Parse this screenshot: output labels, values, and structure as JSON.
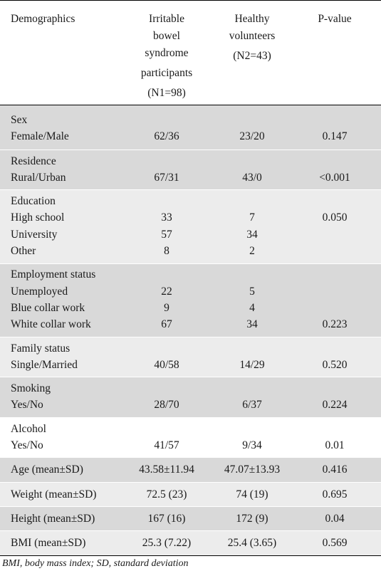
{
  "header": {
    "demographics": "Demographics",
    "ibs_lines": [
      "Irritable",
      "bowel",
      "syndrome",
      "participants",
      "(N1=98)"
    ],
    "hv_lines": [
      "Healthy",
      "volunteers",
      "(N2=43)"
    ],
    "pvalue": "P-value"
  },
  "rows": {
    "sex": {
      "title": "Sex",
      "r1": {
        "label": "Female/Male",
        "ibs": "62/36",
        "hv": "23/20",
        "p": "0.147"
      }
    },
    "residence": {
      "title": "Residence",
      "r1": {
        "label": "Rural/Urban",
        "ibs": "67/31",
        "hv": "43/0",
        "p": "<0.001"
      }
    },
    "education": {
      "title": "Education",
      "r1": {
        "label": "High school",
        "ibs": "33",
        "hv": "7",
        "p": "0.050"
      },
      "r2": {
        "label": "University",
        "ibs": "57",
        "hv": "34"
      },
      "r3": {
        "label": "Other",
        "ibs": "8",
        "hv": "2"
      }
    },
    "employment": {
      "title": "Employment status",
      "r1": {
        "label": "Unemployed",
        "ibs": "22",
        "hv": "5"
      },
      "r2": {
        "label": "Blue collar work",
        "ibs": "9",
        "hv": "4"
      },
      "r3": {
        "label": "White collar work",
        "ibs": "67",
        "hv": "34",
        "p": "0.223"
      }
    },
    "family": {
      "title": "Family status",
      "r1": {
        "label": "Single/Married",
        "ibs": "40/58",
        "hv": "14/29",
        "p": "0.520"
      }
    },
    "smoking": {
      "title": "Smoking",
      "r1": {
        "label": "Yes/No",
        "ibs": "28/70",
        "hv": "6/37",
        "p": "0.224"
      }
    },
    "alcohol": {
      "title": "Alcohol",
      "r1": {
        "label": "Yes/No",
        "ibs": "41/57",
        "hv": "9/34",
        "p": "0.01"
      }
    },
    "age": {
      "label": "Age (mean±SD)",
      "ibs": "43.58±11.94",
      "hv": "47.07±13.93",
      "p": "0.416"
    },
    "weight": {
      "label": "Weight (mean±SD)",
      "ibs": "72.5 (23)",
      "hv": "74 (19)",
      "p": "0.695"
    },
    "height": {
      "label": "Height (mean±SD)",
      "ibs": "167 (16)",
      "hv": "172 (9)",
      "p": "0.04"
    },
    "bmi": {
      "label": "BMI (mean±SD)",
      "ibs": "25.3 (7.22)",
      "hv": "25.4 (3.65)",
      "p": "0.569"
    }
  },
  "footnote": "BMI, body mass index; SD, standard deviation",
  "colors": {
    "shade": "#d9d9d9",
    "rule": "#000000"
  }
}
